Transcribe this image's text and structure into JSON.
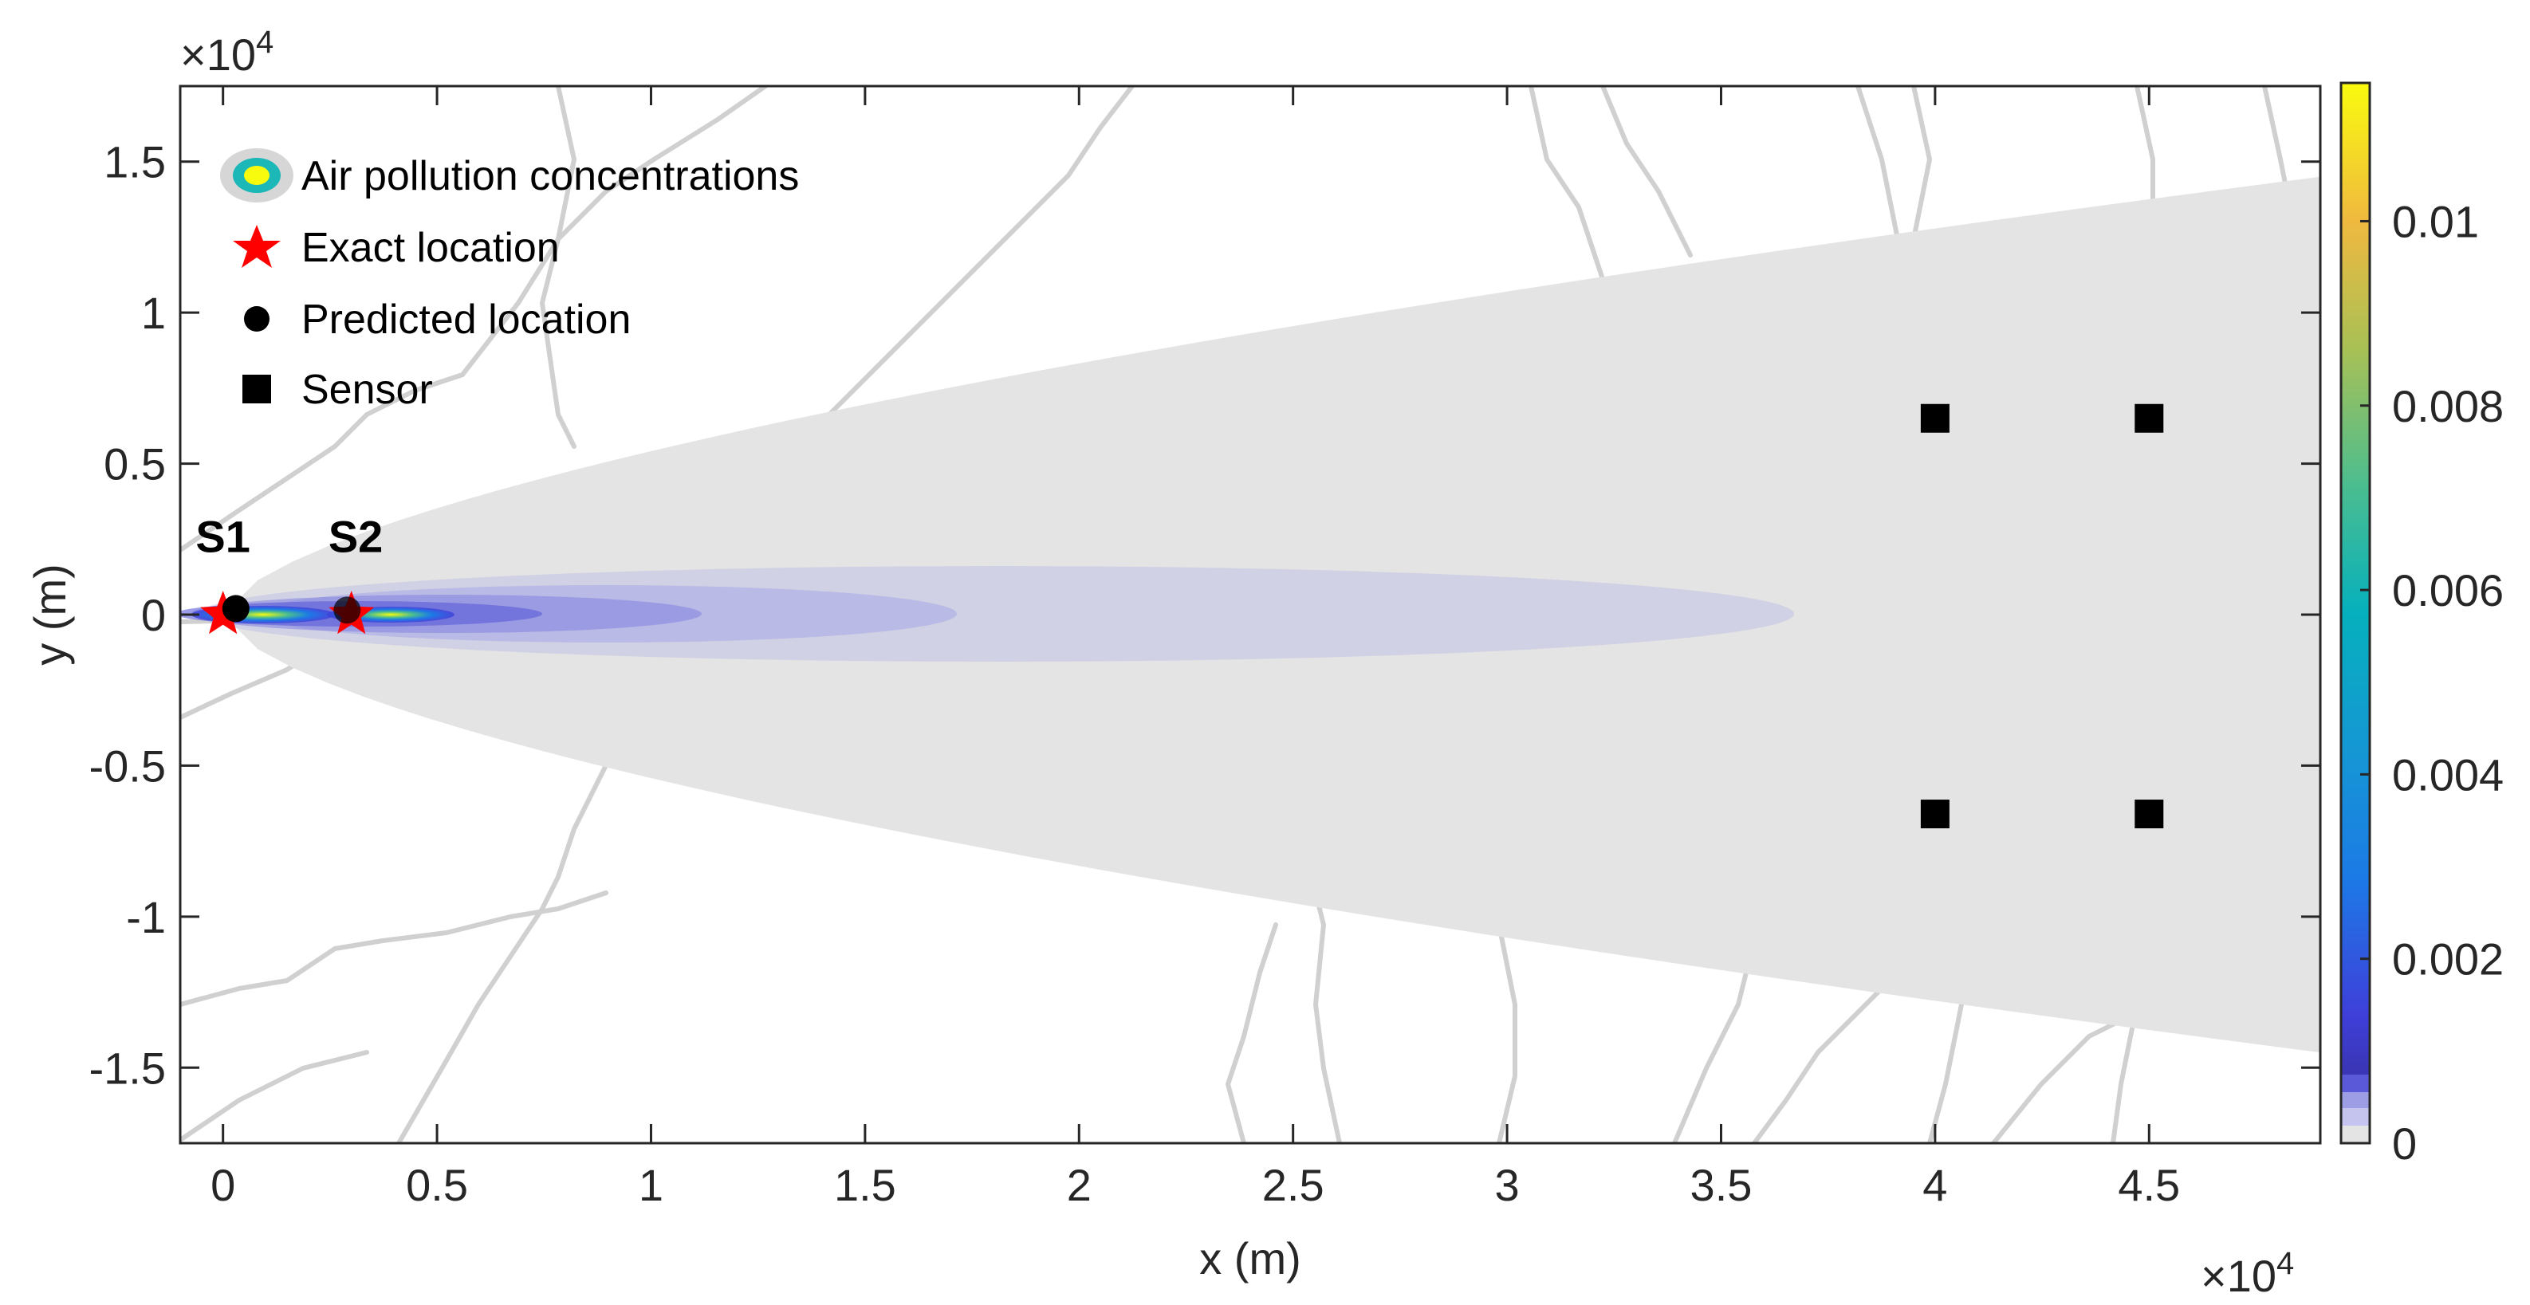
{
  "chart_data": {
    "type": "heatmap",
    "title": "",
    "xlabel": "x (m)",
    "ylabel": "y (m)",
    "x_exponent": "×10",
    "x_exponent_power": "4",
    "y_exponent": "×10",
    "y_exponent_power": "4",
    "xlim": [
      -0.1,
      4.9
    ],
    "ylim": [
      -1.75,
      1.75
    ],
    "xticks": [
      0,
      0.5,
      1,
      1.5,
      2,
      2.5,
      3,
      3.5,
      4,
      4.5
    ],
    "xtick_labels": [
      "0",
      "0.5",
      "1",
      "1.5",
      "2",
      "2.5",
      "3",
      "3.5",
      "4",
      "4.5"
    ],
    "yticks": [
      1.5,
      1,
      0.5,
      0,
      -0.5,
      -1,
      -1.5
    ],
    "ytick_labels": [
      "1.5",
      "1",
      "0.5",
      "0",
      "-0.5",
      "-1",
      "-1.5"
    ],
    "axis_scale_note": "x and y values in units of 10^4 m",
    "grid": false,
    "legend_position": "top-left",
    "legend": [
      {
        "label": "Air pollution concentrations",
        "marker": "ellipse"
      },
      {
        "label": "Exact location",
        "marker": "star",
        "color": "#ff0000"
      },
      {
        "label": "Predicted location",
        "marker": "circle",
        "color": "#000000"
      },
      {
        "label": "Sensor",
        "marker": "square",
        "color": "#000000"
      }
    ],
    "exact_locations": [
      {
        "x": 0,
        "y": 0
      },
      {
        "x": 0.3,
        "y": 0
      }
    ],
    "predicted_locations": [
      {
        "x": 0.03,
        "y": 0.02
      },
      {
        "x": 0.29,
        "y": 0.015
      }
    ],
    "sensors": [
      {
        "x": 4.0,
        "y": 0.65
      },
      {
        "x": 4.5,
        "y": 0.65
      },
      {
        "x": 4.0,
        "y": -0.66
      },
      {
        "x": 4.5,
        "y": -0.66
      }
    ],
    "source_labels": [
      {
        "text": "S1",
        "x": 0.0,
        "y": 0.26
      },
      {
        "text": "S2",
        "x": 0.31,
        "y": 0.26
      }
    ],
    "plume_envelope_halfwidth": {
      "at_x0": 0,
      "at_xmax": 1.45
    },
    "colorbar": {
      "min": 0,
      "max": 0.0115,
      "ticks": [
        0,
        0.002,
        0.004,
        0.006,
        0.008,
        0.01
      ],
      "tick_labels": [
        "0",
        "0.002",
        "0.004",
        "0.006",
        "0.008",
        "0.01"
      ],
      "colormap": "parula"
    },
    "colors": {
      "envelope": "#e4e4e4",
      "road": "#d0d0d0",
      "star": "#ff0000",
      "marker": "#000000"
    }
  }
}
